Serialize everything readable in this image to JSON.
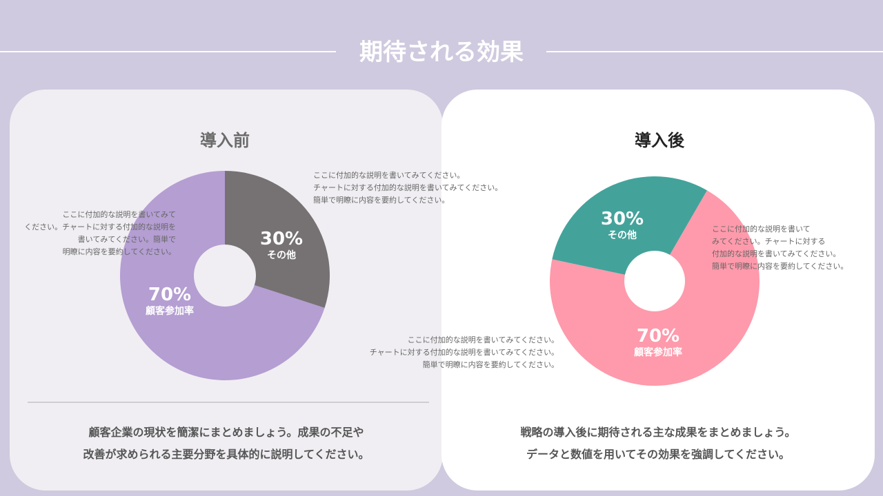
{
  "title": "期待される効果",
  "before": {
    "title": "導入前",
    "summary": [
      "顧客企業の現状を簡潔にまとめましょう。成果の不足や",
      "改善が求められる主要分野を具体的に説明してください。"
    ],
    "note_top": "ここに付加的な説明を書いてみてください。\nチャートに対する付加的な説明を書いてみてください。\n簡単で明瞭に内容を要約してください。",
    "note_left": "ここに付加的な説明を書いてみて\nください。チャートに対する付加的な説明を\n書いてみてください。簡単で\n明瞭に内容を要約してください。"
  },
  "after": {
    "title": "導入後",
    "summary": [
      "戦略の導入後に期待される主な成果をまとめましょう。",
      "データと数値を用いてその効果を強調してください。"
    ],
    "note_right": "ここに付加的な説明を書いて\nみてください。チャートに対する\n付加的な説明を書いてみてください。\n簡単で明瞭に内容を要約してください。",
    "note_bottom": "ここに付加的な説明を書いてみてください。\nチャートに対する付加的な説明を書いてみてください。\n簡単で明瞭に内容を要約してください。"
  },
  "chart_data": [
    {
      "type": "pie",
      "donut": true,
      "title": "導入前",
      "slices": [
        {
          "label": "その他",
          "value": 30,
          "text": "30%",
          "color": "#767274"
        },
        {
          "label": "顧客参加率",
          "value": 70,
          "text": "70%",
          "color": "#b49ed2"
        }
      ]
    },
    {
      "type": "pie",
      "donut": true,
      "title": "導入後",
      "slices": [
        {
          "label": "その他",
          "value": 30,
          "text": "30%",
          "color": "#43a39b"
        },
        {
          "label": "顧客参加率",
          "value": 70,
          "text": "70%",
          "color": "#fe9aab"
        }
      ]
    }
  ]
}
